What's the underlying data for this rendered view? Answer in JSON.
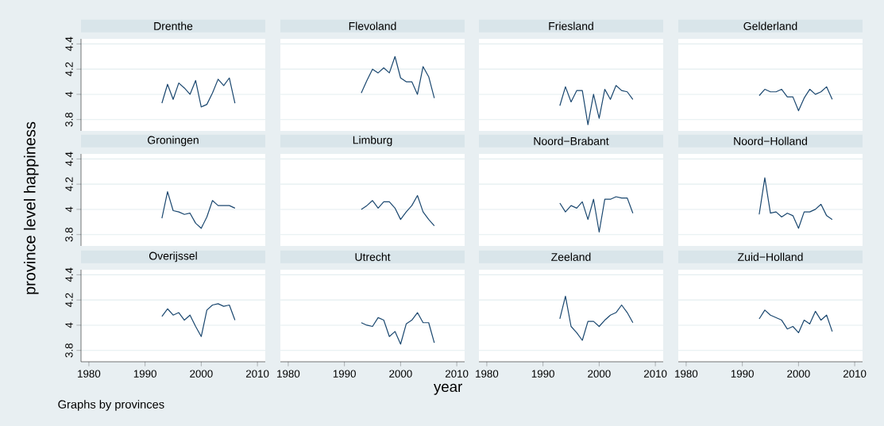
{
  "chart_data": [
    {
      "type": "line",
      "title": "Drenthe",
      "x": [
        1993,
        1994,
        1995,
        1996,
        1997,
        1998,
        1999,
        2000,
        2001,
        2002,
        2003,
        2004,
        2005,
        2006
      ],
      "values": [
        3.93,
        4.08,
        3.96,
        4.09,
        4.05,
        4.0,
        4.11,
        3.9,
        3.92,
        4.01,
        4.12,
        4.07,
        4.13,
        3.93
      ],
      "color": "#1a476f",
      "xlim": [
        1978.6,
        2011.4
      ],
      "ylim": [
        3.71,
        4.44
      ],
      "xticks": [
        1980,
        1990,
        2000,
        2010
      ],
      "yticks": [
        3.8,
        4,
        4.2,
        4.4
      ],
      "grid": "y",
      "tick_labels": "y"
    },
    {
      "type": "line",
      "title": "Flevoland",
      "x": [
        1993,
        1994,
        1995,
        1996,
        1997,
        1998,
        1999,
        2000,
        2001,
        2002,
        2003,
        2004,
        2005,
        2006
      ],
      "values": [
        4.01,
        4.11,
        4.2,
        4.17,
        4.21,
        4.17,
        4.3,
        4.13,
        4.1,
        4.1,
        4.0,
        4.22,
        4.14,
        3.97
      ],
      "color": "#1a476f",
      "xlim": [
        1978.6,
        2011.4
      ],
      "ylim": [
        3.71,
        4.44
      ],
      "xticks": [
        1980,
        1990,
        2000,
        2010
      ],
      "yticks": [
        3.8,
        4,
        4.2,
        4.4
      ],
      "grid": "y",
      "tick_labels": false
    },
    {
      "type": "line",
      "title": "Friesland",
      "x": [
        1993,
        1994,
        1995,
        1996,
        1997,
        1998,
        1999,
        2000,
        2001,
        2002,
        2003,
        2004,
        2005,
        2006
      ],
      "values": [
        3.91,
        4.06,
        3.94,
        4.03,
        4.03,
        3.76,
        4.0,
        3.81,
        4.04,
        3.96,
        4.07,
        4.03,
        4.02,
        3.96
      ],
      "color": "#1a476f",
      "xlim": [
        1978.6,
        2011.4
      ],
      "ylim": [
        3.71,
        4.44
      ],
      "xticks": [
        1980,
        1990,
        2000,
        2010
      ],
      "yticks": [
        3.8,
        4,
        4.2,
        4.4
      ],
      "grid": "y",
      "tick_labels": false
    },
    {
      "type": "line",
      "title": "Gelderland",
      "x": [
        1993,
        1994,
        1995,
        1996,
        1997,
        1998,
        1999,
        2000,
        2001,
        2002,
        2003,
        2004,
        2005,
        2006
      ],
      "values": [
        3.99,
        4.04,
        4.02,
        4.02,
        4.04,
        3.98,
        3.98,
        3.87,
        3.97,
        4.04,
        4.0,
        4.02,
        4.06,
        3.96
      ],
      "color": "#1a476f",
      "xlim": [
        1978.6,
        2011.4
      ],
      "ylim": [
        3.71,
        4.44
      ],
      "xticks": [
        1980,
        1990,
        2000,
        2010
      ],
      "yticks": [
        3.8,
        4,
        4.2,
        4.4
      ],
      "grid": "y",
      "tick_labels": false
    },
    {
      "type": "line",
      "title": "Groningen",
      "ylabel": "province level happiness",
      "x": [
        1993,
        1994,
        1995,
        1996,
        1997,
        1998,
        1999,
        2000,
        2001,
        2002,
        2003,
        2004,
        2005,
        2006
      ],
      "values": [
        3.93,
        4.14,
        3.99,
        3.98,
        3.96,
        3.97,
        3.89,
        3.85,
        3.94,
        4.07,
        4.03,
        4.03,
        4.03,
        4.01
      ],
      "color": "#1a476f",
      "xlim": [
        1978.6,
        2011.4
      ],
      "ylim": [
        3.71,
        4.44
      ],
      "xticks": [
        1980,
        1990,
        2000,
        2010
      ],
      "yticks": [
        3.8,
        4,
        4.2,
        4.4
      ],
      "grid": "y",
      "tick_labels": "y"
    },
    {
      "type": "line",
      "title": "Limburg",
      "x": [
        1993,
        1994,
        1995,
        1996,
        1997,
        1998,
        1999,
        2000,
        2001,
        2002,
        2003,
        2004,
        2005,
        2006
      ],
      "values": [
        4.0,
        4.03,
        4.07,
        4.01,
        4.06,
        4.06,
        4.01,
        3.92,
        3.98,
        4.03,
        4.11,
        3.98,
        3.92,
        3.87
      ],
      "color": "#1a476f",
      "xlim": [
        1978.6,
        2011.4
      ],
      "ylim": [
        3.71,
        4.44
      ],
      "xticks": [
        1980,
        1990,
        2000,
        2010
      ],
      "yticks": [
        3.8,
        4,
        4.2,
        4.4
      ],
      "grid": "y",
      "tick_labels": false
    },
    {
      "type": "line",
      "title": "Noord−Brabant",
      "x": [
        1993,
        1994,
        1995,
        1996,
        1997,
        1998,
        1999,
        2000,
        2001,
        2002,
        2003,
        2004,
        2005,
        2006
      ],
      "values": [
        4.05,
        3.98,
        4.03,
        4.01,
        4.06,
        3.92,
        4.08,
        3.82,
        4.08,
        4.08,
        4.1,
        4.09,
        4.09,
        3.97
      ],
      "color": "#1a476f",
      "xlim": [
        1978.6,
        2011.4
      ],
      "ylim": [
        3.71,
        4.44
      ],
      "xticks": [
        1980,
        1990,
        2000,
        2010
      ],
      "yticks": [
        3.8,
        4,
        4.2,
        4.4
      ],
      "grid": "y",
      "tick_labels": false
    },
    {
      "type": "line",
      "title": "Noord−Holland",
      "x": [
        1993,
        1994,
        1995,
        1996,
        1997,
        1998,
        1999,
        2000,
        2001,
        2002,
        2003,
        2004,
        2005,
        2006
      ],
      "values": [
        3.96,
        4.25,
        3.97,
        3.98,
        3.94,
        3.97,
        3.95,
        3.85,
        3.98,
        3.98,
        4.0,
        4.04,
        3.95,
        3.92
      ],
      "color": "#1a476f",
      "xlim": [
        1978.6,
        2011.4
      ],
      "ylim": [
        3.71,
        4.44
      ],
      "xticks": [
        1980,
        1990,
        2000,
        2010
      ],
      "yticks": [
        3.8,
        4,
        4.2,
        4.4
      ],
      "grid": "y",
      "tick_labels": false
    },
    {
      "type": "line",
      "title": "Overijssel",
      "annotations": [
        "Graphs by provinces"
      ],
      "x": [
        1993,
        1994,
        1995,
        1996,
        1997,
        1998,
        1999,
        2000,
        2001,
        2002,
        2003,
        2004,
        2005,
        2006
      ],
      "values": [
        4.07,
        4.13,
        4.08,
        4.1,
        4.04,
        4.08,
        3.99,
        3.91,
        4.12,
        4.16,
        4.17,
        4.15,
        4.16,
        4.04
      ],
      "color": "#1a476f",
      "xlim": [
        1978.6,
        2011.4
      ],
      "ylim": [
        3.71,
        4.44
      ],
      "xticks": [
        1980,
        1990,
        2000,
        2010
      ],
      "yticks": [
        3.8,
        4,
        4.2,
        4.4
      ],
      "grid": "y"
    },
    {
      "type": "line",
      "title": "Utrecht",
      "xlabel": "year",
      "x": [
        1993,
        1994,
        1995,
        1996,
        1997,
        1998,
        1999,
        2000,
        2001,
        2002,
        2003,
        2004,
        2005,
        2006
      ],
      "values": [
        4.02,
        4.0,
        3.99,
        4.06,
        4.04,
        3.91,
        3.95,
        3.85,
        4.01,
        4.04,
        4.1,
        4.02,
        4.02,
        3.86
      ],
      "color": "#1a476f",
      "xlim": [
        1978.6,
        2011.4
      ],
      "ylim": [
        3.71,
        4.44
      ],
      "xticks": [
        1980,
        1990,
        2000,
        2010
      ],
      "yticks": [
        3.8,
        4,
        4.2,
        4.4
      ],
      "grid": "y",
      "tick_labels": "x"
    },
    {
      "type": "line",
      "title": "Zeeland",
      "x": [
        1993,
        1994,
        1995,
        1996,
        1997,
        1998,
        1999,
        2000,
        2001,
        2002,
        2003,
        2004,
        2005,
        2006
      ],
      "values": [
        4.05,
        4.23,
        3.99,
        3.94,
        3.88,
        4.03,
        4.03,
        3.99,
        4.04,
        4.08,
        4.1,
        4.16,
        4.1,
        4.02
      ],
      "color": "#1a476f",
      "xlim": [
        1978.6,
        2011.4
      ],
      "ylim": [
        3.71,
        4.44
      ],
      "xticks": [
        1980,
        1990,
        2000,
        2010
      ],
      "yticks": [
        3.8,
        4,
        4.2,
        4.4
      ],
      "grid": "y",
      "tick_labels": "x"
    },
    {
      "type": "line",
      "title": "Zuid−Holland",
      "x": [
        1993,
        1994,
        1995,
        1996,
        1997,
        1998,
        1999,
        2000,
        2001,
        2002,
        2003,
        2004,
        2005,
        2006
      ],
      "values": [
        4.05,
        4.12,
        4.08,
        4.06,
        4.04,
        3.97,
        3.99,
        3.94,
        4.04,
        4.01,
        4.11,
        4.04,
        4.08,
        3.95
      ],
      "color": "#1a476f",
      "xlim": [
        1978.6,
        2011.4
      ],
      "ylim": [
        3.71,
        4.44
      ],
      "xticks": [
        1980,
        1990,
        2000,
        2010
      ],
      "yticks": [
        3.8,
        4,
        4.2,
        4.4
      ],
      "grid": "y",
      "tick_labels": "x"
    }
  ]
}
